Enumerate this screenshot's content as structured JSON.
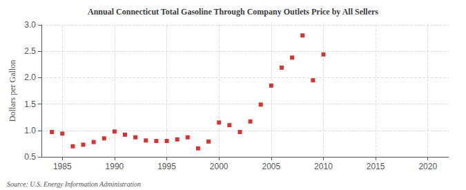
{
  "chart_data": {
    "type": "scatter",
    "title": "Annual Connecticut Total Gasoline Through Company Outlets Price by All Sellers",
    "ylabel": "Dollars per Gallon",
    "annotations": [
      "Source: U.S. Energy Information Administration"
    ],
    "color": "#cc0000",
    "marker": "square",
    "grid": true,
    "xlim": [
      1983,
      2022
    ],
    "ylim": [
      0.5,
      3.0
    ],
    "xticks": [
      1985,
      1990,
      1995,
      2000,
      2005,
      2010,
      2015,
      2020
    ],
    "yticks": [
      0.5,
      {
        "value": 1,
        "label": "1.0"
      },
      1.5,
      {
        "value": 2,
        "label": "2.0"
      },
      2.5,
      {
        "value": 3,
        "label": "3.0"
      }
    ],
    "x": [
      1984,
      1985,
      1986,
      1987,
      1988,
      1989,
      1990,
      1991,
      1992,
      1993,
      1994,
      1995,
      1996,
      1997,
      1998,
      1999,
      2000,
      2001,
      2002,
      2003,
      2004,
      2005,
      2006,
      2007,
      2008,
      2009,
      2010
    ],
    "values": [
      0.97,
      0.94,
      0.7,
      0.73,
      0.78,
      0.85,
      0.98,
      0.92,
      0.87,
      0.81,
      0.8,
      0.8,
      0.83,
      0.87,
      0.66,
      0.79,
      1.15,
      1.1,
      0.97,
      1.17,
      1.49,
      1.85,
      2.19,
      2.38,
      2.8,
      1.95,
      2.44
    ]
  }
}
